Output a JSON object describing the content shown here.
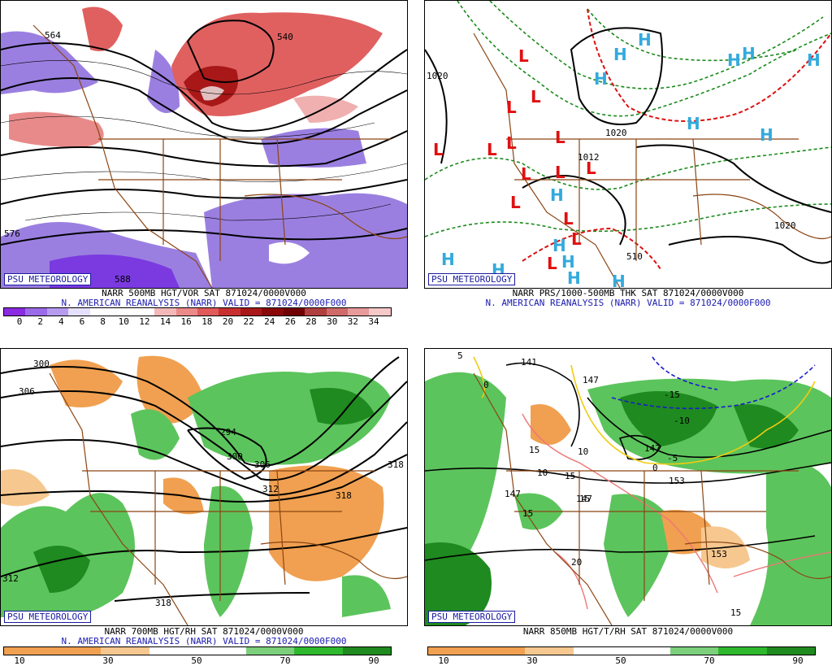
{
  "badge": "PSU METEOROLOGY",
  "panels": [
    {
      "title": "NARR 500MB HGT/VOR SAT 871024/0000V000",
      "subtitle": "N. AMERICAN REANALYSIS (NARR) VALID = 871024/0000F000",
      "colorbar": {
        "colors": [
          "#8a2be2",
          "#9b6ae8",
          "#b79bf0",
          "#e6e0ff",
          "#ffffff",
          "#ffffff",
          "#ffffff",
          "#f4b8b8",
          "#ec8a8a",
          "#e05a5a",
          "#c83030",
          "#a81818",
          "#8a0808",
          "#700000",
          "#b04040",
          "#d06a6a",
          "#e89a9a",
          "#f6c8c8"
        ],
        "ticks": [
          "0",
          "2",
          "4",
          "6",
          "8",
          "10",
          "12",
          "14",
          "16",
          "18",
          "20",
          "22",
          "24",
          "26",
          "28",
          "30",
          "32",
          "34"
        ]
      },
      "labels": [
        "564",
        "540",
        "588",
        "576"
      ]
    },
    {
      "title": "NARR PRS/1000-500MB THK SAT 871024/0000V000",
      "subtitle": "N. AMERICAN REANALYSIS (NARR) VALID = 871024/0000F000",
      "labels": [
        "1020",
        "1020",
        "1012",
        "1020",
        "510"
      ]
    },
    {
      "title": "NARR 700MB HGT/RH SAT 871024/0000V000",
      "subtitle": "N. AMERICAN REANALYSIS (NARR) VALID = 871024/0000F000",
      "colorbar": {
        "colors": [
          "#f0a050",
          "#f0a050",
          "#f6c890",
          "#ffffff",
          "#ffffff",
          "#7cd07c",
          "#2eb82e",
          "#1f8a1f"
        ],
        "ticks": [
          "10",
          "30",
          "50",
          "70",
          "90"
        ]
      },
      "labels": [
        "300",
        "306",
        "294",
        "300",
        "306",
        "312",
        "318",
        "318",
        "312",
        "318"
      ]
    },
    {
      "title": "NARR 850MB HGT/T/RH SAT 871024/0000V000",
      "subtitle": "",
      "colorbar": {
        "colors": [
          "#f0a050",
          "#f0a050",
          "#f6c890",
          "#ffffff",
          "#ffffff",
          "#7cd07c",
          "#2eb82e",
          "#1f8a1f"
        ],
        "ticks": [
          "10",
          "30",
          "50",
          "70",
          "90"
        ]
      },
      "labels": [
        "141",
        "147",
        "-15",
        "-10",
        "-5",
        "147",
        "153",
        "15",
        "15",
        "15",
        "15",
        "147",
        "147",
        "10",
        "10",
        "20",
        "153",
        "15",
        "5",
        "0",
        "0"
      ]
    }
  ]
}
